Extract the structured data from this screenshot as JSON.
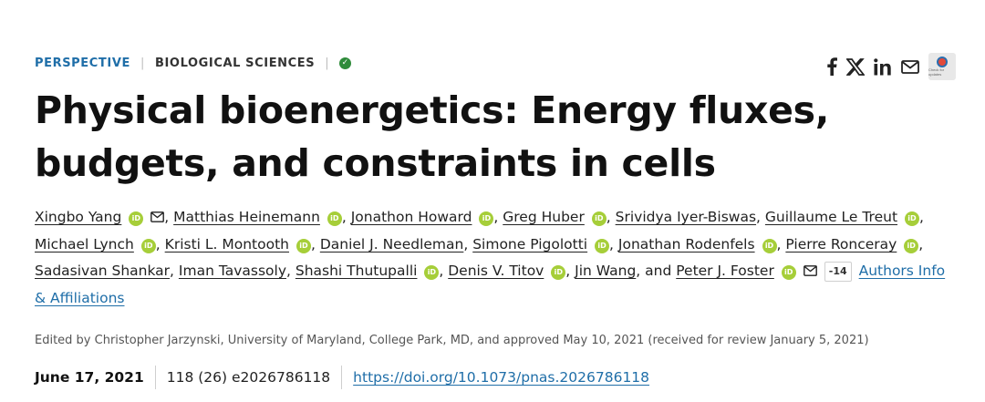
{
  "header": {
    "article_type": "PERSPECTIVE",
    "section": "BIOLOGICAL SCIENCES",
    "verified_icon": "check-circle-icon"
  },
  "share": {
    "icons": [
      "facebook-icon",
      "x-icon",
      "linkedin-icon",
      "email-icon"
    ],
    "check_updates_label": "Check for updates"
  },
  "title": "Physical bioenergetics: Energy fluxes, budgets, and constraints in cells",
  "authors": [
    {
      "name": "Xingbo Yang",
      "orcid": true,
      "email": true,
      "sep": ", "
    },
    {
      "name": "Matthias Heinemann",
      "orcid": true,
      "sep": ", "
    },
    {
      "name": "Jonathon Howard",
      "orcid": true,
      "sep": ", "
    },
    {
      "name": "Greg Huber",
      "orcid": true,
      "sep": ", "
    },
    {
      "name": "Srividya Iyer-Biswas",
      "orcid": false,
      "sep": ", "
    },
    {
      "name": "Guillaume Le Treut",
      "orcid": true,
      "sep": ", "
    },
    {
      "name": "Michael Lynch",
      "orcid": true,
      "sep": ", "
    },
    {
      "name": "Kristi L. Montooth",
      "orcid": true,
      "sep": ", "
    },
    {
      "name": "Daniel J. Needleman",
      "orcid": false,
      "sep": ", "
    },
    {
      "name": "Simone Pigolotti",
      "orcid": true,
      "sep": ", "
    },
    {
      "name": "Jonathan Rodenfels",
      "orcid": true,
      "sep": ", "
    },
    {
      "name": "Pierre Ronceray",
      "orcid": true,
      "sep": ", "
    },
    {
      "name": "Sadasivan Shankar",
      "orcid": false,
      "sep": ", "
    },
    {
      "name": "Iman Tavassoly",
      "orcid": false,
      "sep": ", "
    },
    {
      "name": "Shashi Thutupalli",
      "orcid": true,
      "sep": ", "
    },
    {
      "name": "Denis V. Titov",
      "orcid": true,
      "sep": ", "
    },
    {
      "name": "Jin Wang",
      "orcid": false,
      "sep": ", and "
    },
    {
      "name": "Peter J. Foster",
      "orcid": true,
      "email": true,
      "sep": ""
    }
  ],
  "authors_more": "-14",
  "authors_info_link": "Authors Info & Affiliations",
  "orcid_label": "iD",
  "edited_by": "Edited by Christopher Jarzynski, University of Maryland, College Park, MD, and approved May 10, 2021 (received for review January 5, 2021)",
  "meta": {
    "date": "June 17, 2021",
    "citation": "118 (26) e2026786118",
    "doi": "https://doi.org/10.1073/pnas.2026786118"
  }
}
